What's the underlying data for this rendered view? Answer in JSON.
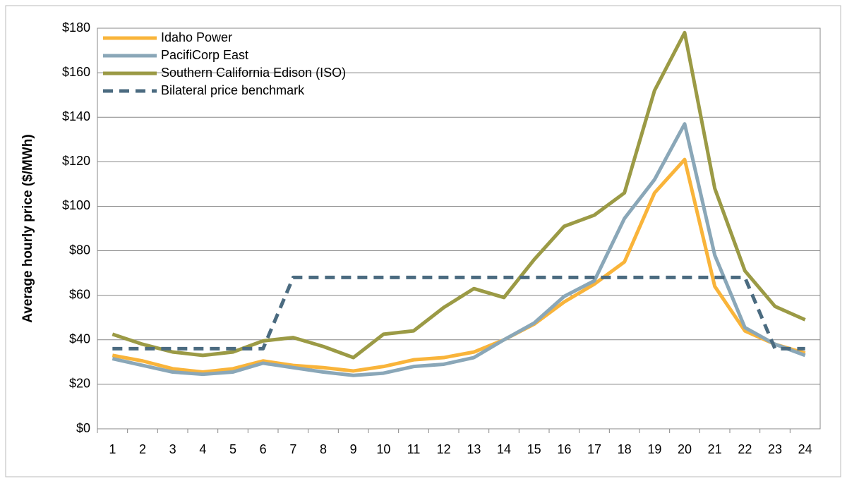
{
  "chart_data": {
    "type": "line",
    "y_label": "Average hourly price ($/MWh)",
    "categories": [
      "1",
      "2",
      "3",
      "4",
      "5",
      "6",
      "7",
      "8",
      "9",
      "10",
      "11",
      "12",
      "13",
      "14",
      "15",
      "16",
      "17",
      "18",
      "19",
      "20",
      "21",
      "22",
      "23",
      "24"
    ],
    "series": [
      {
        "name": "Idaho Power",
        "color": "#f9b43a",
        "dash": false,
        "values": [
          33,
          30.5,
          27,
          25.5,
          27,
          30.5,
          28.5,
          27.5,
          26,
          28,
          31,
          32,
          34.5,
          40,
          47,
          57,
          65,
          75,
          106,
          121,
          64,
          44,
          38,
          34
        ]
      },
      {
        "name": "PacifiCorp East",
        "color": "#8aa7b8",
        "dash": false,
        "values": [
          31.5,
          28.5,
          25.5,
          24.5,
          25.5,
          29.5,
          27.5,
          25.5,
          24,
          25,
          28,
          29,
          32,
          40,
          47.5,
          59.5,
          66.5,
          94.5,
          112,
          137,
          78,
          45.5,
          38,
          33
        ]
      },
      {
        "name": "Southern California Edison (ISO)",
        "color": "#9b9a45",
        "dash": false,
        "values": [
          42.5,
          38,
          34.5,
          33,
          34.5,
          39.5,
          41,
          37,
          32,
          42.5,
          44,
          54.5,
          63,
          59,
          76,
          91,
          96,
          106,
          152,
          178,
          108,
          71,
          55,
          49
        ]
      },
      {
        "name": "Bilateral price benchmark",
        "color": "#4b6b80",
        "dash": true,
        "values": [
          36,
          36,
          36,
          36,
          36,
          36,
          68,
          68,
          68,
          68,
          68,
          68,
          68,
          68,
          68,
          68,
          68,
          68,
          68,
          68,
          68,
          68,
          36,
          36
        ]
      }
    ],
    "ylim": [
      0,
      180
    ],
    "yticks": [
      {
        "value": 0,
        "label": "$0"
      },
      {
        "value": 20,
        "label": "$20"
      },
      {
        "value": 40,
        "label": "$40"
      },
      {
        "value": 60,
        "label": "$60"
      },
      {
        "value": 80,
        "label": "$80"
      },
      {
        "value": 100,
        "label": "$100"
      },
      {
        "value": 120,
        "label": "$120"
      },
      {
        "value": 140,
        "label": "$140"
      },
      {
        "value": 160,
        "label": "$160"
      },
      {
        "value": 180,
        "label": "$180"
      }
    ],
    "grid": true,
    "legend": "top-left"
  }
}
